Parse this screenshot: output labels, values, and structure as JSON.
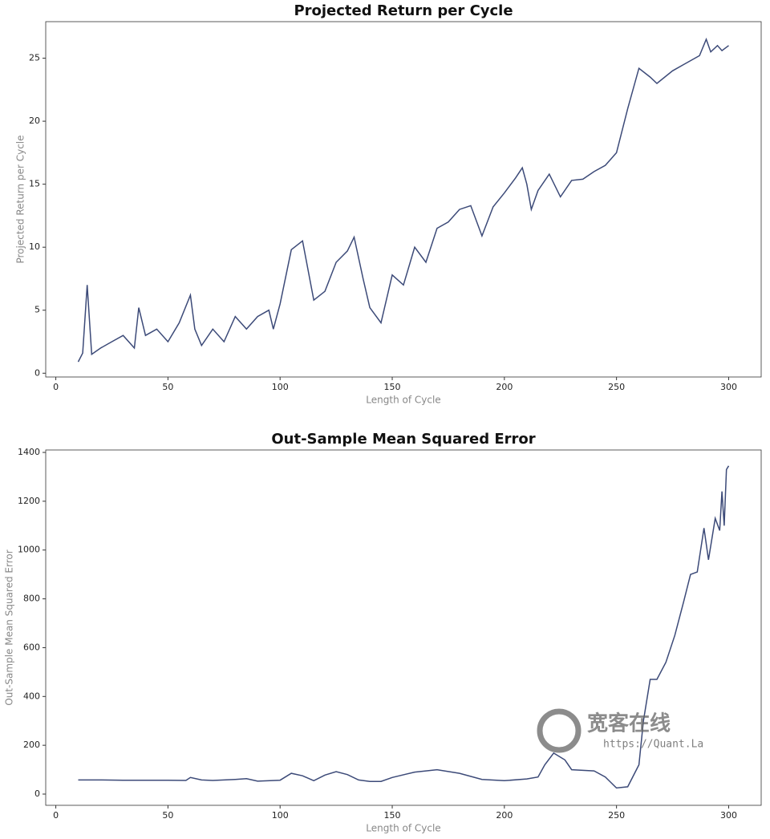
{
  "chart_data": [
    {
      "type": "line",
      "title": "Projected Return per Cycle",
      "xlabel": "Length of Cycle",
      "ylabel": "Projected Return per Cycle",
      "x": [
        10,
        12,
        14,
        16,
        20,
        25,
        30,
        35,
        37,
        40,
        45,
        50,
        55,
        60,
        62,
        65,
        70,
        75,
        80,
        85,
        90,
        95,
        97,
        100,
        105,
        110,
        115,
        120,
        125,
        130,
        133,
        137,
        140,
        145,
        150,
        155,
        160,
        165,
        170,
        175,
        180,
        185,
        190,
        195,
        200,
        205,
        208,
        210,
        212,
        215,
        220,
        225,
        230,
        235,
        240,
        245,
        250,
        255,
        260,
        265,
        268,
        275,
        280,
        287,
        290,
        292,
        295,
        297,
        300
      ],
      "series": [
        {
          "name": "Projected Return per Cycle",
          "color": "#3c4a78",
          "values": [
            0.9,
            1.6,
            7.0,
            1.5,
            2.0,
            2.5,
            3.0,
            2.0,
            5.2,
            3.0,
            3.5,
            2.5,
            4.0,
            6.2,
            3.5,
            2.2,
            3.5,
            2.5,
            4.5,
            3.5,
            4.5,
            5.0,
            3.5,
            5.5,
            9.8,
            10.5,
            5.8,
            6.5,
            8.8,
            9.7,
            10.8,
            7.5,
            5.2,
            4.0,
            7.8,
            7.0,
            10.0,
            8.8,
            11.5,
            12.0,
            13.0,
            13.3,
            10.9,
            13.2,
            14.3,
            15.5,
            16.3,
            15.0,
            13.0,
            14.5,
            15.8,
            14.0,
            15.3,
            15.4,
            16.0,
            16.5,
            17.5,
            21.0,
            24.2,
            23.5,
            23.0,
            24.0,
            24.5,
            25.2,
            26.5,
            25.5,
            26.0,
            25.6,
            26.0
          ]
        }
      ],
      "xlim": [
        -4.5,
        314.5
      ],
      "xticks": [
        0,
        50,
        100,
        150,
        200,
        250,
        300
      ],
      "ylim": [
        -0.3,
        27.9
      ],
      "yticks": [
        0,
        5,
        10,
        15,
        20,
        25
      ]
    },
    {
      "type": "line",
      "title": "Out-Sample Mean Squared Error",
      "xlabel": "Length of Cycle",
      "ylabel": "Out-Sample Mean Squared Error",
      "x": [
        10,
        20,
        30,
        40,
        50,
        58,
        60,
        65,
        70,
        80,
        85,
        90,
        100,
        105,
        110,
        115,
        120,
        125,
        130,
        135,
        140,
        145,
        150,
        160,
        170,
        180,
        190,
        200,
        210,
        215,
        218,
        222,
        227,
        230,
        240,
        245,
        250,
        255,
        260,
        262,
        265,
        268,
        272,
        276,
        280,
        283,
        286,
        289,
        291,
        294,
        296,
        297,
        298,
        299,
        300
      ],
      "series": [
        {
          "name": "Out-Sample Mean Squared Error",
          "color": "#3c4a78",
          "values": [
            58,
            58,
            57,
            57,
            57,
            56,
            68,
            58,
            56,
            60,
            63,
            53,
            57,
            85,
            75,
            55,
            78,
            92,
            80,
            58,
            52,
            52,
            68,
            90,
            100,
            85,
            60,
            55,
            62,
            70,
            120,
            168,
            140,
            100,
            95,
            70,
            25,
            30,
            120,
            300,
            470,
            470,
            540,
            650,
            790,
            900,
            910,
            1090,
            960,
            1130,
            1080,
            1240,
            1100,
            1330,
            1345
          ]
        }
      ],
      "xlim": [
        -4.5,
        314.5
      ],
      "xticks": [
        0,
        50,
        100,
        150,
        200,
        250,
        300
      ],
      "ylim": [
        -46,
        1410
      ],
      "yticks": [
        0,
        200,
        400,
        600,
        800,
        1000,
        1200,
        1400
      ]
    }
  ],
  "watermark": {
    "name": "宽客在线",
    "url": "https://Quant.La"
  }
}
